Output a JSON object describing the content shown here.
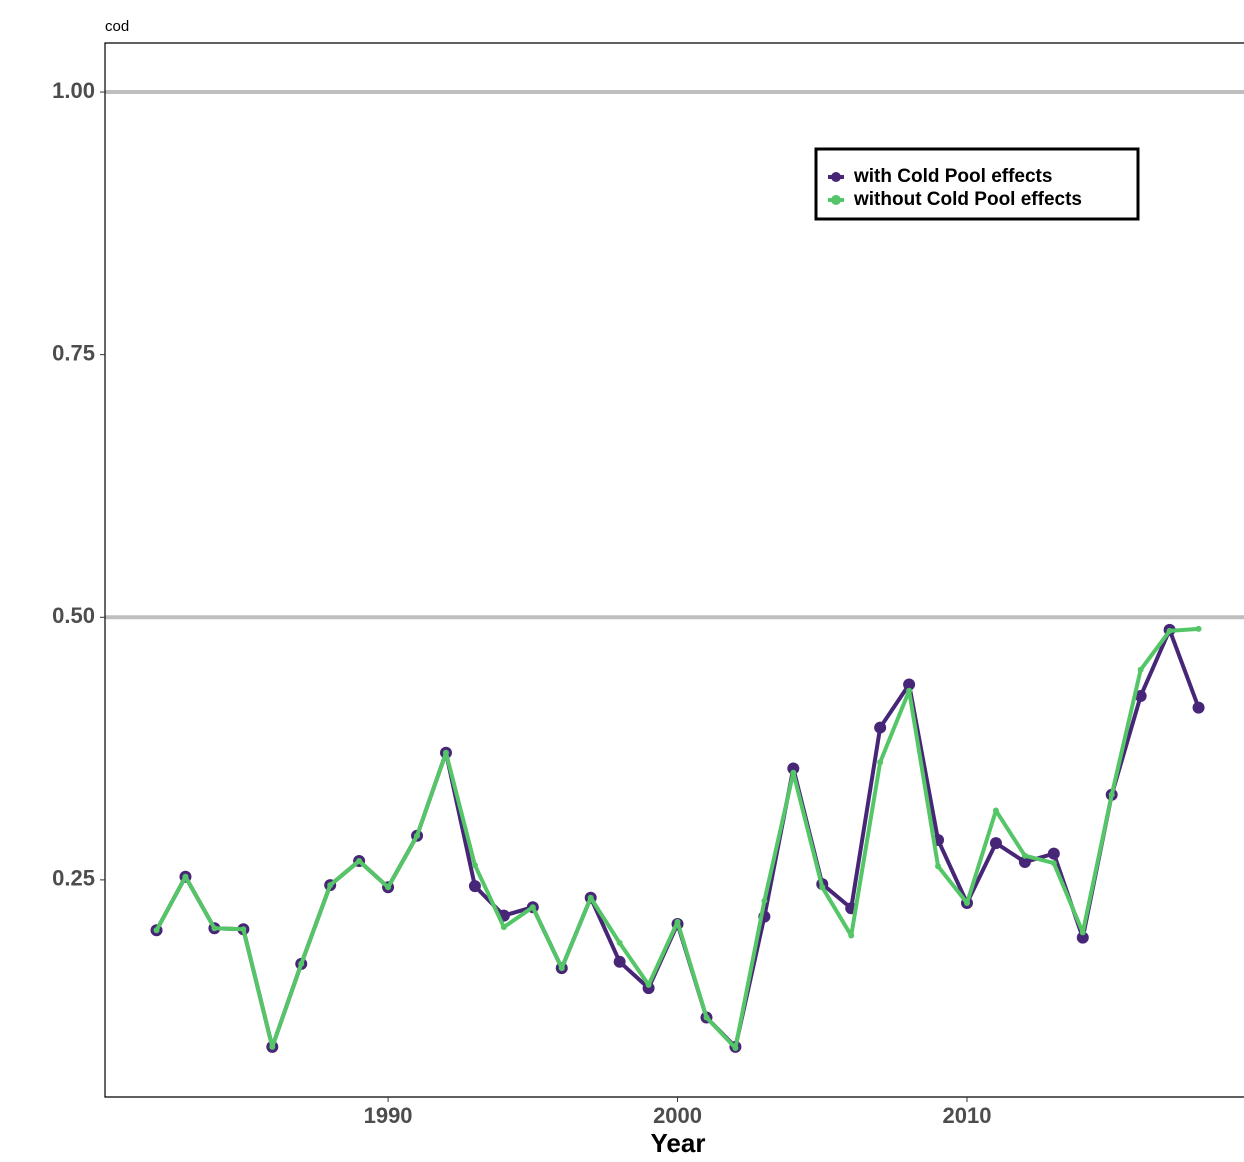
{
  "chart_data": {
    "type": "line",
    "title": "cod",
    "x_label": "Year",
    "x": [
      1982,
      1983,
      1984,
      1985,
      1986,
      1987,
      1988,
      1989,
      1990,
      1991,
      1992,
      1993,
      1994,
      1995,
      1996,
      1997,
      1998,
      1999,
      2000,
      2001,
      2002,
      2003,
      2004,
      2005,
      2006,
      2007,
      2008,
      2009,
      2010,
      2011,
      2012,
      2013,
      2014,
      2015,
      2016,
      2017,
      2018
    ],
    "series": [
      {
        "name": "with Cold Pool effects",
        "color": "#482677",
        "point_size": 6,
        "values": [
          0.202,
          0.253,
          0.204,
          0.203,
          0.091,
          0.17,
          0.245,
          0.268,
          0.243,
          0.292,
          0.371,
          0.244,
          0.216,
          0.224,
          0.166,
          0.233,
          0.172,
          0.147,
          0.208,
          0.119,
          0.091,
          0.215,
          0.356,
          0.246,
          0.223,
          0.395,
          0.436,
          0.288,
          0.228,
          0.285,
          0.267,
          0.275,
          0.195,
          0.331,
          0.425,
          0.488,
          0.414
        ]
      },
      {
        "name": "without Cold Pool effects",
        "color": "#55c667",
        "point_size": 3,
        "values": [
          0.202,
          0.253,
          0.204,
          0.203,
          0.091,
          0.17,
          0.245,
          0.268,
          0.243,
          0.292,
          0.371,
          0.264,
          0.205,
          0.224,
          0.166,
          0.233,
          0.19,
          0.15,
          0.21,
          0.119,
          0.09,
          0.23,
          0.352,
          0.243,
          0.197,
          0.362,
          0.43,
          0.263,
          0.228,
          0.316,
          0.273,
          0.266,
          0.2,
          0.331,
          0.45,
          0.487,
          0.489
        ]
      }
    ],
    "xlim": [
      1980.22,
      2019.57
    ],
    "xticks": [
      1990,
      2000,
      2010
    ],
    "ylim": [
      0.0433,
      1.0467
    ],
    "yticks": [
      {
        "value": 0.25,
        "label": "0.25"
      },
      {
        "value": 0.5,
        "label": "0.50"
      },
      {
        "value": 0.75,
        "label": "0.75"
      },
      {
        "value": 1,
        "label": "1.00"
      }
    ],
    "reference_lines": [
      0.5,
      1
    ],
    "legend_position": "top-right"
  }
}
